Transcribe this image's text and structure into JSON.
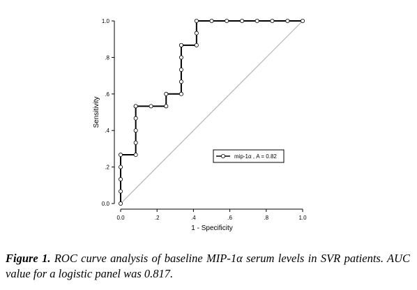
{
  "chart_data": {
    "type": "line",
    "xlabel": "1 - Specificity",
    "ylabel": "Sensitivity",
    "xlim": [
      0,
      1
    ],
    "ylim": [
      0,
      1
    ],
    "x_ticks": [
      0,
      0.2,
      0.4,
      0.6,
      0.8,
      1.0
    ],
    "x_tick_labels": [
      "0.0",
      ".2",
      ".4",
      ".6",
      ".8",
      "1.0"
    ],
    "y_ticks": [
      0,
      0.2,
      0.4,
      0.6,
      0.8,
      1.0
    ],
    "y_tick_labels": [
      "0.0",
      ".2",
      ".4",
      ".6",
      ".8",
      "1.0"
    ],
    "grid": false,
    "legend": {
      "placement": "lower-right",
      "label": "mip-1α , A = 0.82"
    },
    "reference_line": {
      "x": [
        0,
        1
      ],
      "y": [
        0,
        1
      ],
      "color": "#b4b4b4"
    },
    "series": [
      {
        "name": "mip-1α",
        "color": "#000000",
        "x": [
          0,
          0,
          0,
          0,
          0,
          0.083,
          0.083,
          0.083,
          0.083,
          0.083,
          0.083,
          0.167,
          0.25,
          0.25,
          0.333,
          0.333,
          0.333,
          0.333,
          0.333,
          0.333,
          0.417,
          0.417,
          0.417,
          0.5,
          0.583,
          0.667,
          0.75,
          0.833,
          0.917,
          1.0
        ],
        "y": [
          0,
          0.067,
          0.133,
          0.2,
          0.267,
          0.267,
          0.333,
          0.4,
          0.467,
          0.533,
          0.533,
          0.533,
          0.533,
          0.6,
          0.6,
          0.667,
          0.733,
          0.8,
          0.867,
          0.867,
          0.867,
          0.933,
          1.0,
          1.0,
          1.0,
          1.0,
          1.0,
          1.0,
          1.0,
          1.0
        ]
      }
    ]
  },
  "caption": {
    "label": "Figure 1.",
    "text": " ROC curve analysis of baseline MIP-1α serum levels in SVR patients. AUC value for a logistic panel was 0.817."
  }
}
